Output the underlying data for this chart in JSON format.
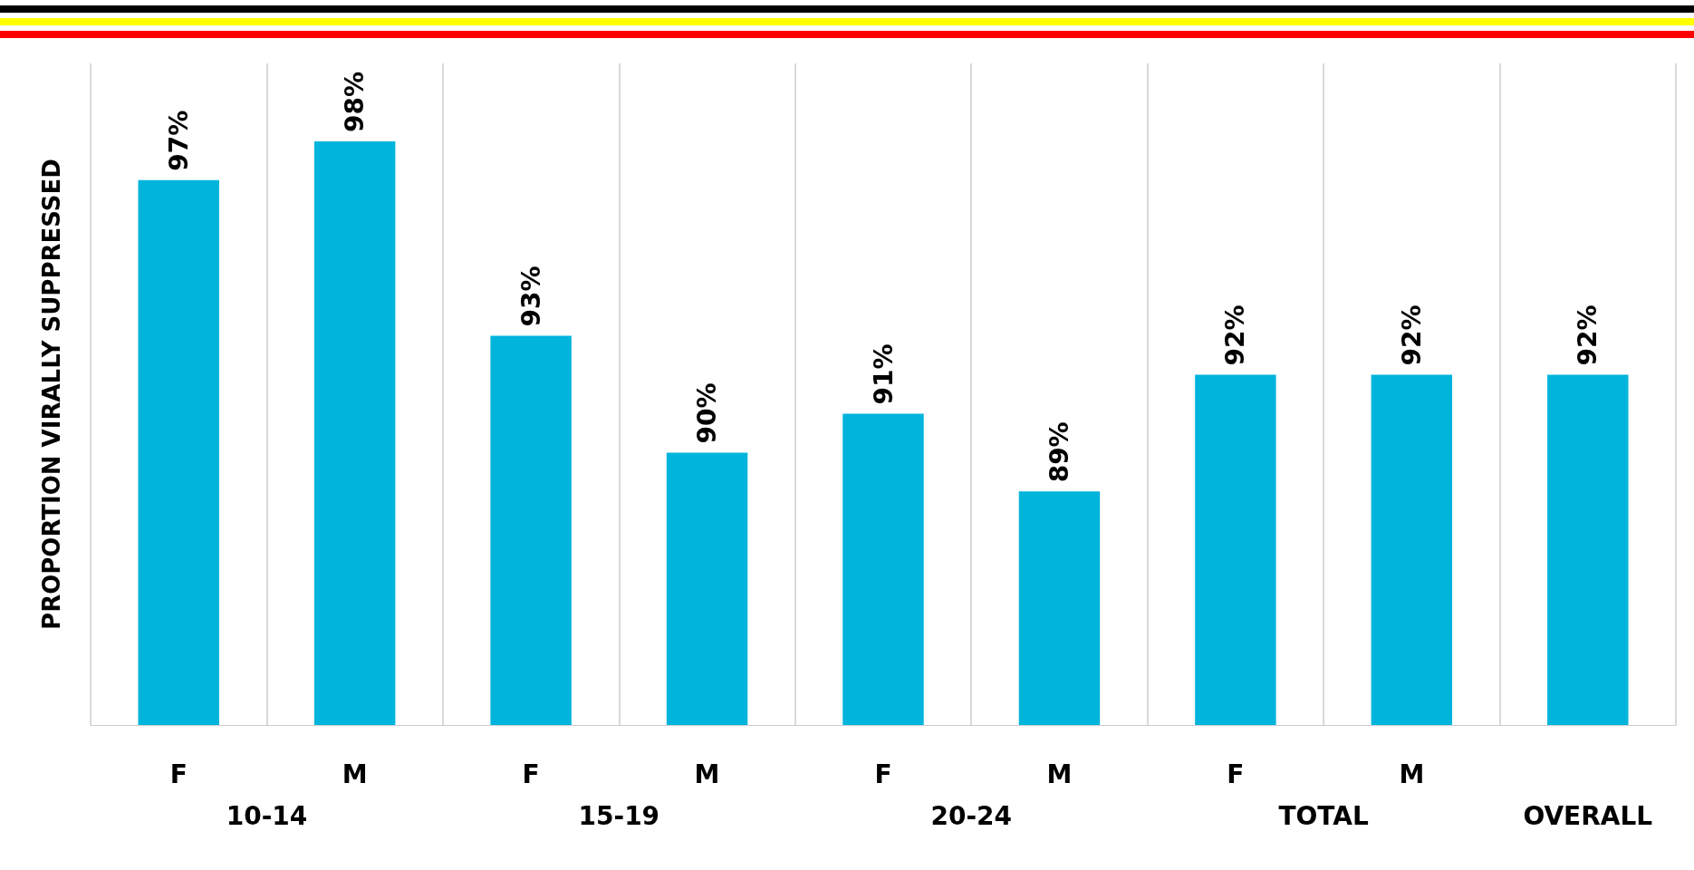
{
  "chart_data": {
    "type": "bar",
    "ylabel": "PROPORTION VIRALLY SUPPRESSED",
    "categories": [
      "F",
      "M",
      "F",
      "M",
      "F",
      "M",
      "F",
      "M",
      null
    ],
    "values": [
      97,
      98,
      93,
      90,
      91,
      89,
      92,
      92,
      92
    ],
    "value_labels": [
      "97%",
      "98%",
      "93%",
      "90%",
      "91%",
      "89%",
      "92%",
      "92%",
      "92%"
    ],
    "color": "#00b4dc",
    "ylim": [
      83,
      100
    ],
    "grid": "x",
    "annotations": [
      "10-14",
      "15-19",
      "20-24",
      "TOTAL",
      "OVERALL"
    ]
  }
}
